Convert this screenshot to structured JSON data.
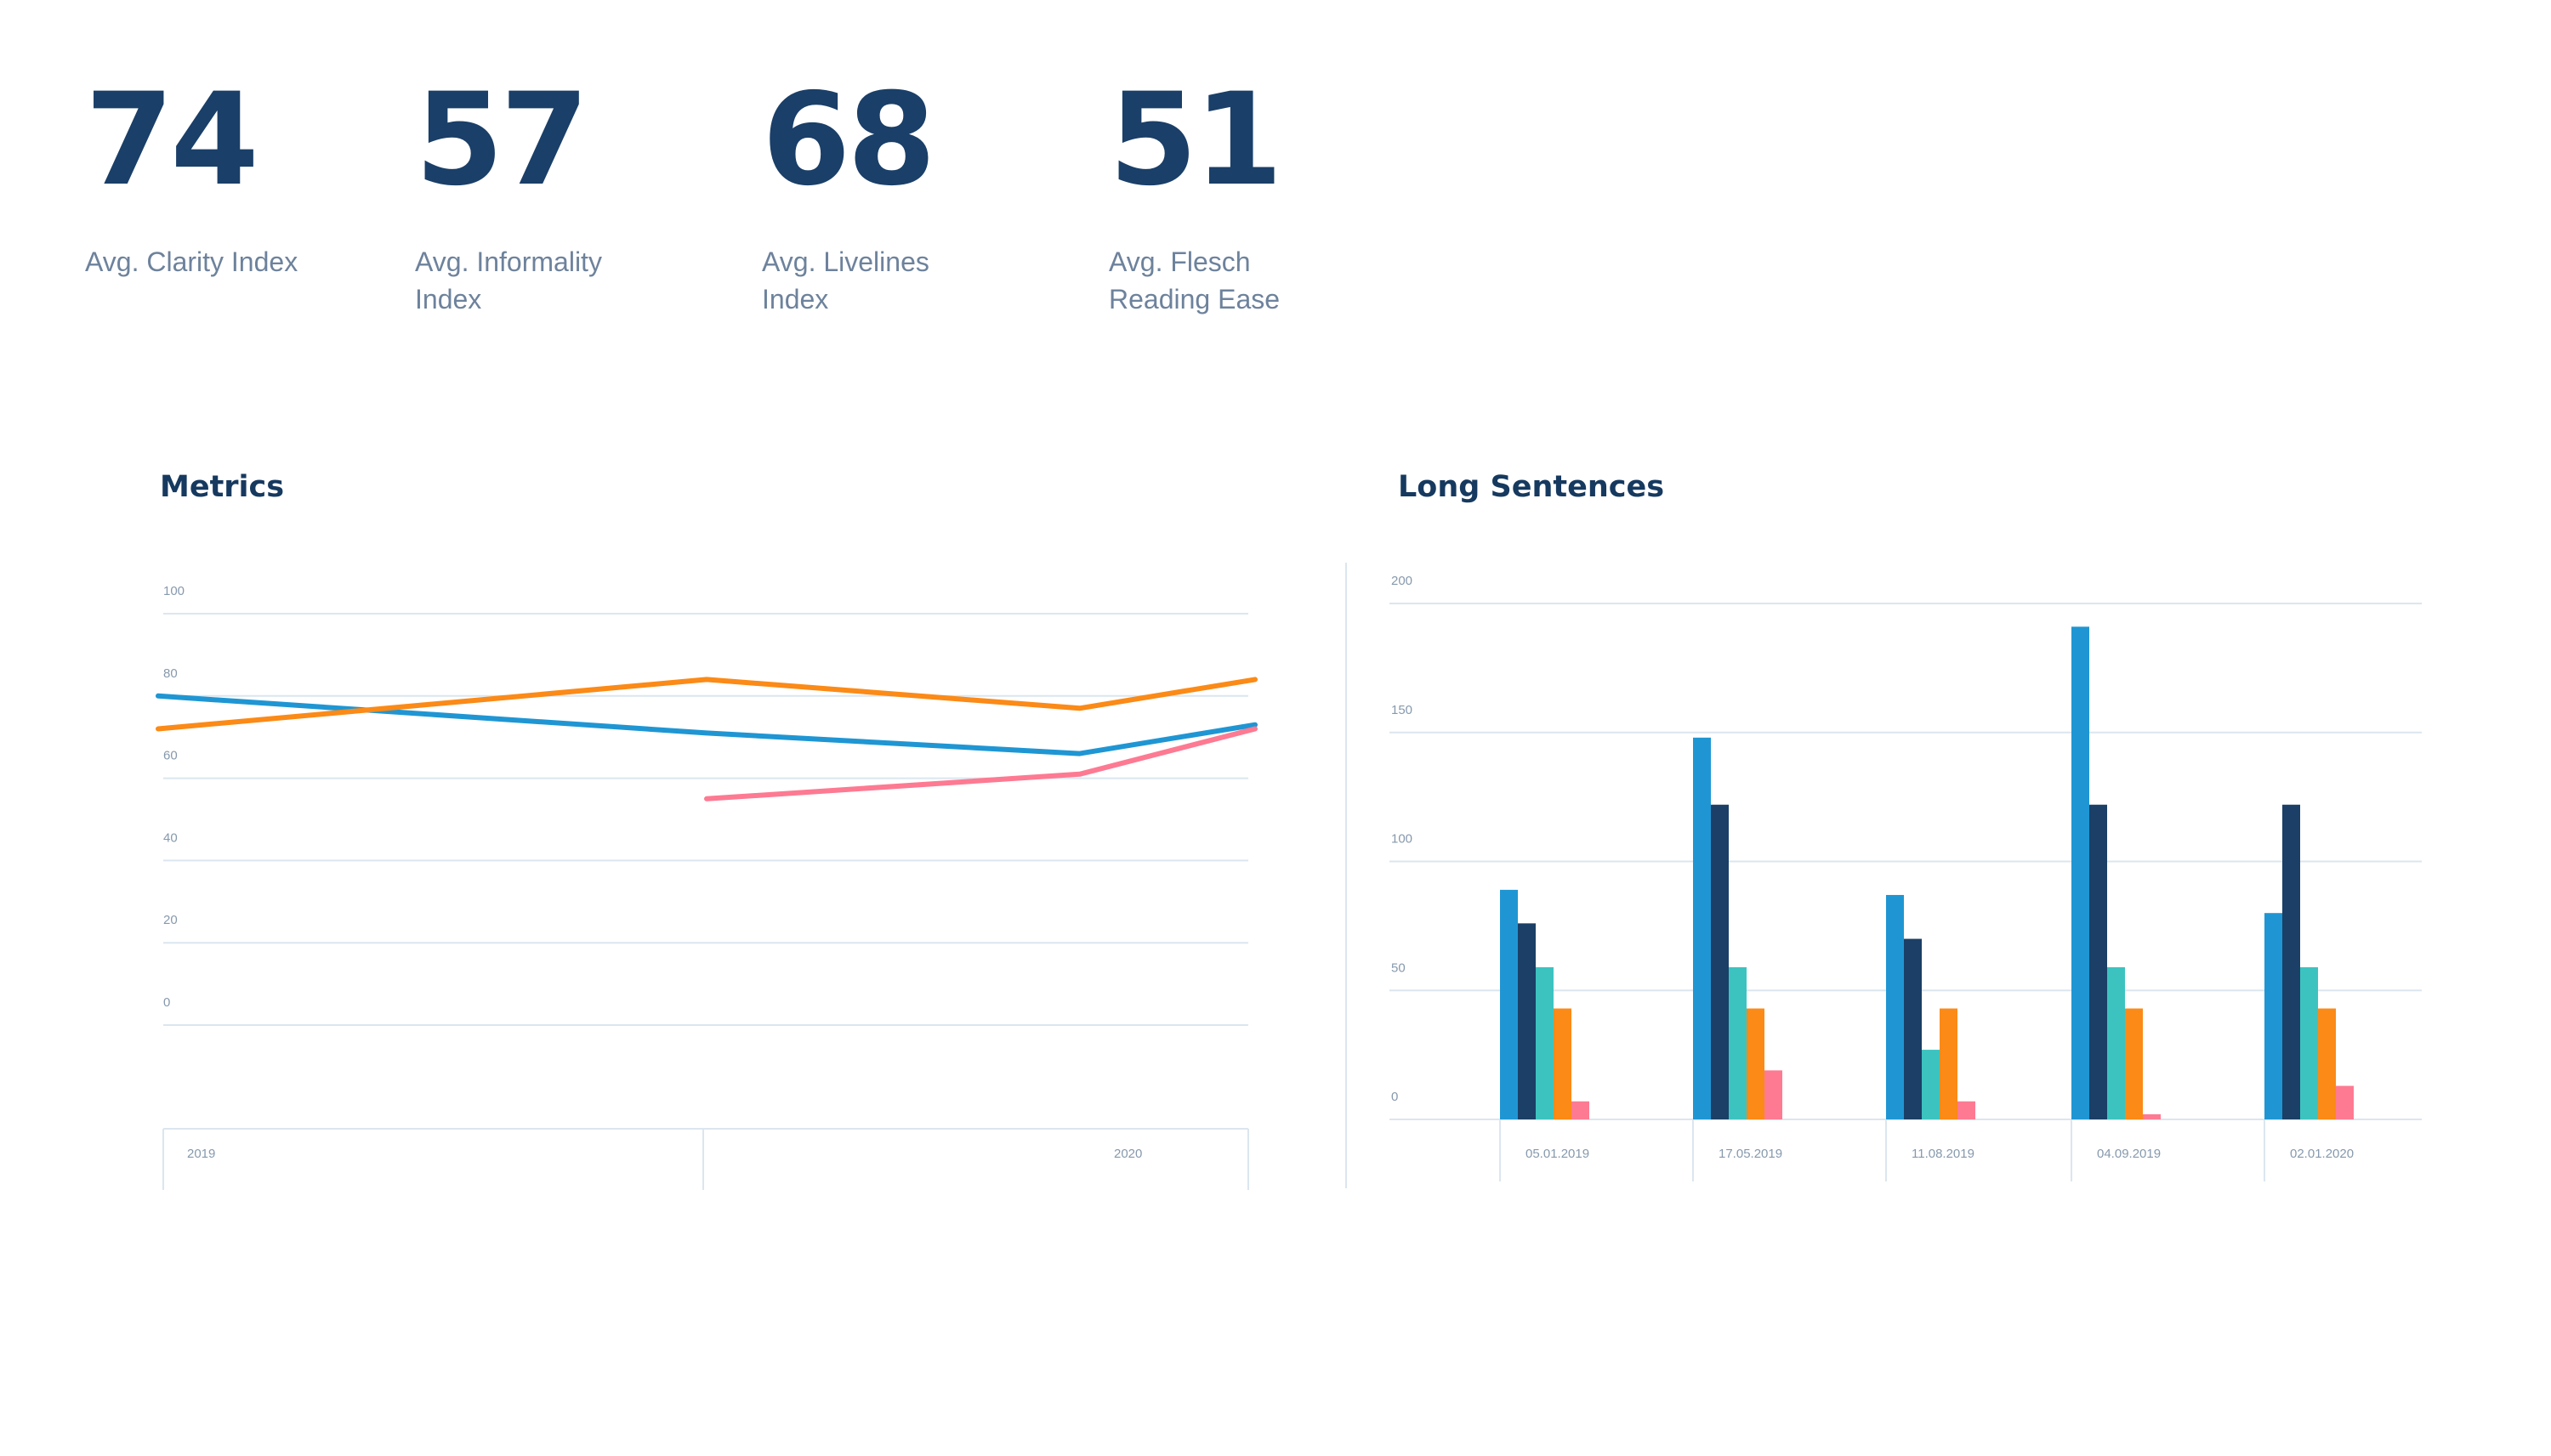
{
  "stats": [
    {
      "value": "74",
      "label": "Avg. Clarity Index"
    },
    {
      "value": "57",
      "label": "Avg. Informality Index"
    },
    {
      "value": "68",
      "label": "Avg. Livelines Index"
    },
    {
      "value": "51",
      "label": "Avg. Flesch Reading Ease"
    }
  ],
  "colors": {
    "dark_navy": "#1a3f68",
    "label_gray": "#6d829c",
    "grid": "#dbe6ef",
    "blue": "#1f96d3",
    "navy": "#1b3f66",
    "teal": "#3cc3c0",
    "orange": "#fb8a17",
    "pink": "#fd7a92"
  },
  "chart_data": [
    {
      "type": "line",
      "title": "Metrics",
      "ylim": [
        0,
        100
      ],
      "y_ticks": [
        "0",
        "20",
        "40",
        "60",
        "80",
        "100"
      ],
      "x_ticks": [
        "2019",
        "2020"
      ],
      "grid": true,
      "legend": "none",
      "x": [
        0,
        0.5,
        0.84,
        1
      ],
      "series": [
        {
          "color": "#1f96d3",
          "values": [
            80,
            71,
            66,
            73
          ]
        },
        {
          "color": "#fb8a17",
          "values": [
            72,
            84,
            77,
            84
          ]
        },
        {
          "color": "#fd7a92",
          "values": [
            null,
            55,
            61,
            72
          ]
        }
      ]
    },
    {
      "type": "bar",
      "title": "Long Sentences",
      "ylim": [
        0,
        200
      ],
      "y_ticks": [
        "0",
        "50",
        "100",
        "150",
        "200"
      ],
      "categories": [
        "05.01.2019",
        "17.05.2019",
        "11.08.2019",
        "04.09.2019",
        "02.01.2020"
      ],
      "grid": true,
      "legend": "none",
      "series": [
        {
          "color": "#1f96d3",
          "values": [
            89,
            148,
            87,
            191,
            80
          ]
        },
        {
          "color": "#1b3f66",
          "values": [
            76,
            122,
            70,
            122,
            122
          ]
        },
        {
          "color": "#3cc3c0",
          "values": [
            59,
            59,
            27,
            59,
            59
          ]
        },
        {
          "color": "#fb8a17",
          "values": [
            43,
            43,
            43,
            43,
            43
          ]
        },
        {
          "color": "#fd7a92",
          "values": [
            7,
            19,
            7,
            2,
            13
          ]
        }
      ]
    }
  ]
}
